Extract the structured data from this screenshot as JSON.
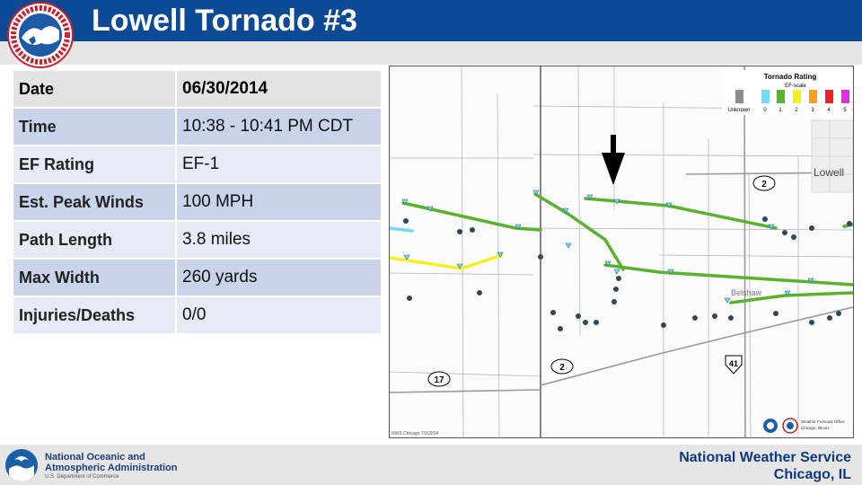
{
  "header": {
    "title": "Lowell Tornado #3"
  },
  "table": {
    "rows": [
      {
        "label": "Date",
        "value": "06/30/2014"
      },
      {
        "label": "Time",
        "value": "10:38 - 10:41 PM CDT"
      },
      {
        "label": "EF Rating",
        "value": "EF-1"
      },
      {
        "label": "Est. Peak Winds",
        "value": "100 MPH"
      },
      {
        "label": "Path Length",
        "value": "3.8 miles"
      },
      {
        "label": "Max Width",
        "value": "260 yards"
      },
      {
        "label": "Injuries/Deaths",
        "value": "0/0"
      }
    ]
  },
  "map": {
    "legend": {
      "title": "Tornado Rating",
      "subtitle": "EF-scale",
      "items": [
        {
          "label": "Unknown",
          "color": "#8c8c8c"
        },
        {
          "label": "0",
          "color": "#79d7f2"
        },
        {
          "label": "1",
          "color": "#58b22e"
        },
        {
          "label": "2",
          "color": "#f6f01d"
        },
        {
          "label": "3",
          "color": "#f7a21b"
        },
        {
          "label": "4",
          "color": "#ee2222"
        },
        {
          "label": "5",
          "color": "#e22de0"
        }
      ]
    },
    "town_label": "Lowell",
    "town_label2": "Belshaw",
    "route_2a": "2",
    "route_2b": "2",
    "route_17": "17",
    "route_41": "41",
    "credit": "NWS Chicago  7/1/2024",
    "office_line1": "Weather Forecast Office",
    "office_line2": "Chicago, Illinois"
  },
  "footer": {
    "noaa_line1": "National Oceanic and",
    "noaa_line2": "Atmospheric Administration",
    "noaa_sub": "U.S. Department of Commerce",
    "nws_line1": "National Weather Service",
    "nws_line2": "Chicago, IL"
  },
  "colors": {
    "header": "#0d4a95",
    "accent": "#0d3a7a"
  }
}
